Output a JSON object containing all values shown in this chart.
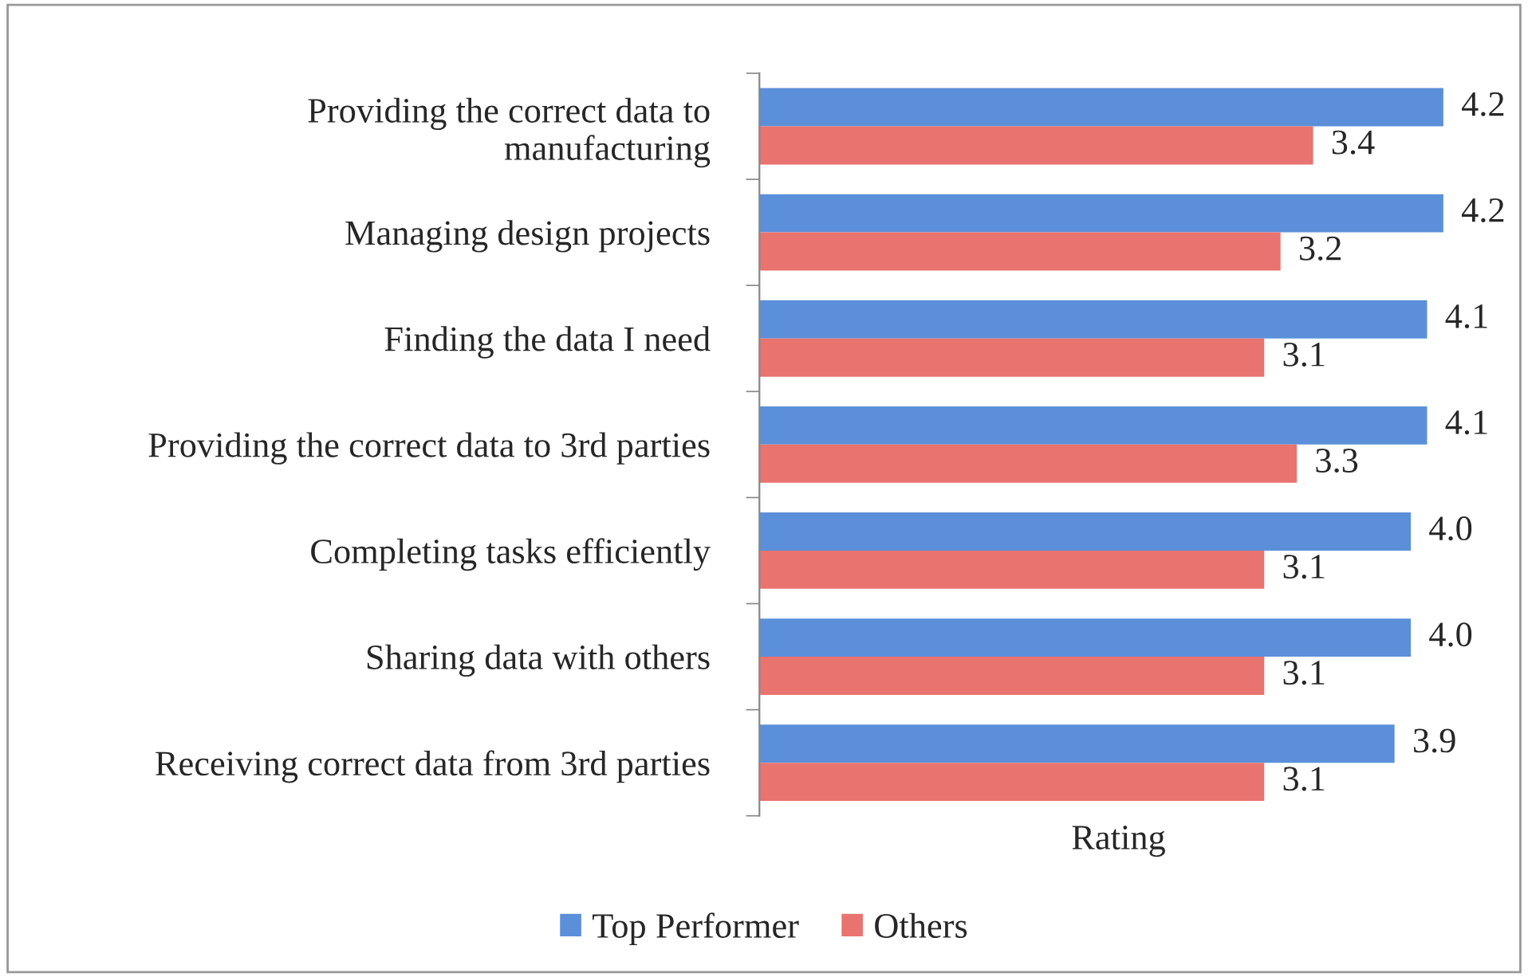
{
  "chart_data": {
    "type": "bar",
    "orientation": "horizontal",
    "xlabel": "Rating",
    "categories": [
      "Providing the correct data to\nmanufacturing",
      "Managing design projects",
      "Finding the data I need",
      "Providing the correct data to 3rd parties",
      "Completing tasks efficiently",
      "Sharing data with others",
      "Receiving correct data from 3rd parties"
    ],
    "series": [
      {
        "name": "Top Performer",
        "color": "#5b8fd9",
        "values": [
          4.2,
          4.2,
          4.1,
          4.1,
          4.0,
          4.0,
          3.9
        ],
        "value_labels": [
          "4.2",
          "4.2",
          "4.1",
          "4.1",
          "4.0",
          "4.0",
          "3.9"
        ]
      },
      {
        "name": "Others",
        "color": "#e8736f",
        "values": [
          3.4,
          3.2,
          3.1,
          3.3,
          3.1,
          3.1,
          3.1
        ],
        "value_labels": [
          "3.4",
          "3.2",
          "3.1",
          "3.3",
          "3.1",
          "3.1",
          "3.1"
        ]
      }
    ],
    "tick_labels": "y",
    "grid": false,
    "legend": "bottom"
  }
}
